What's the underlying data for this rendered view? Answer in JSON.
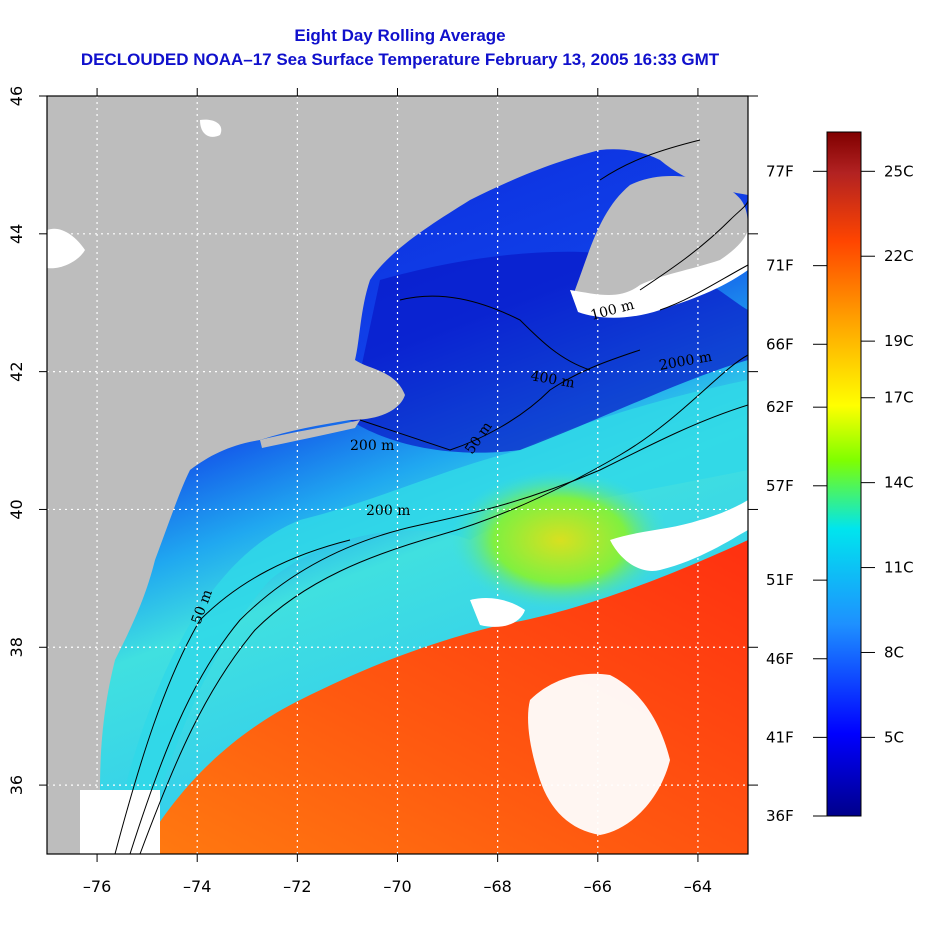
{
  "title": {
    "line1": "Eight Day Rolling Average",
    "line2": "DECLOUDED NOAA–17 Sea Surface Temperature February 13, 2005 16:33 GMT"
  },
  "map": {
    "lon_ticks": [
      "–76",
      "–74",
      "–72",
      "–70",
      "–68",
      "–66",
      "–64"
    ],
    "lat_ticks": [
      "36",
      "38",
      "40",
      "42",
      "44",
      "46"
    ],
    "lon_range": [
      -77,
      -63
    ],
    "lat_range": [
      35,
      46
    ],
    "contour_labels": [
      "50 m",
      "200 m",
      "2000 m",
      "50 m",
      "200 m",
      "400 m",
      "100 m"
    ],
    "colors": {
      "land": "#bdbdbd",
      "cloud": "#ffffff",
      "grid": "#ffffff"
    }
  },
  "colorbar": {
    "celsius_labels": [
      "25C",
      "22C",
      "19C",
      "17C",
      "14C",
      "11C",
      "8C",
      "5C"
    ],
    "fahrenheit_labels": [
      "77F",
      "71F",
      "66F",
      "62F",
      "57F",
      "51F",
      "46F",
      "41F",
      "36F"
    ],
    "gradient": [
      "#00008b",
      "#0000ff",
      "#1e90ff",
      "#00e5ee",
      "#7fff00",
      "#ffff00",
      "#ffa500",
      "#ff4500",
      "#b22222",
      "#800000"
    ]
  }
}
